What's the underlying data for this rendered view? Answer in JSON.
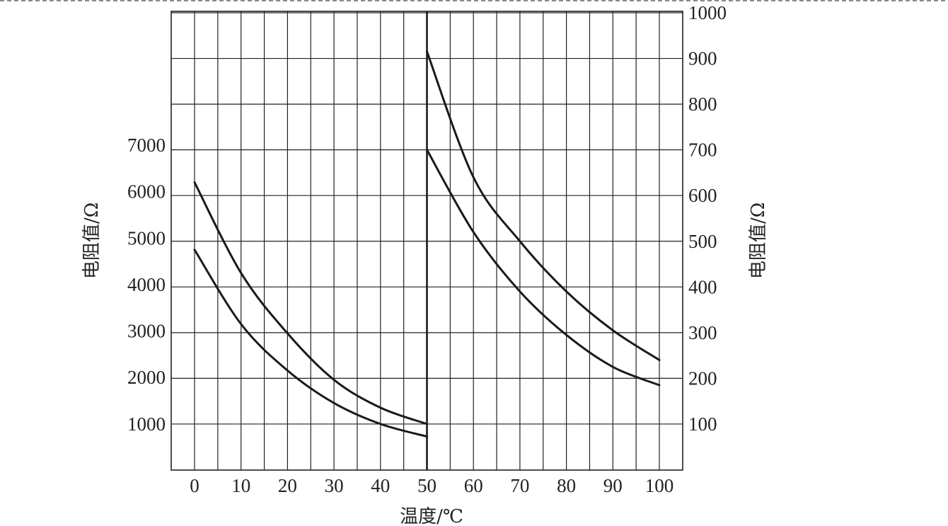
{
  "chart_data": {
    "type": "line",
    "x_axis": {
      "label": "温度/℃",
      "range": [
        0,
        100
      ],
      "ticks": [
        0,
        10,
        20,
        30,
        40,
        50,
        60,
        70,
        80,
        90,
        100
      ]
    },
    "left_axis": {
      "label": "电阻值/Ω",
      "ticks": [
        1000,
        2000,
        3000,
        4000,
        5000,
        6000,
        7000
      ],
      "range_top": 10000
    },
    "right_axis": {
      "label": "电阻值/Ω",
      "ticks": [
        100,
        200,
        300,
        400,
        500,
        600,
        700,
        800,
        900,
        1000
      ]
    },
    "grid": true,
    "series": [
      {
        "axis": "left",
        "x": [
          0,
          10,
          20,
          30,
          40,
          50
        ],
        "y": [
          6200,
          4250,
          2950,
          1950,
          1350,
          1000
        ]
      },
      {
        "axis": "left",
        "x": [
          0,
          10,
          20,
          30,
          40,
          50
        ],
        "y": [
          4750,
          3150,
          2150,
          1450,
          1000,
          730
        ]
      },
      {
        "axis": "right",
        "x": [
          50,
          60,
          70,
          80,
          90,
          100
        ],
        "y": [
          915,
          640,
          500,
          390,
          305,
          240
        ]
      },
      {
        "axis": "right",
        "x": [
          50,
          60,
          70,
          80,
          90,
          100
        ],
        "y": [
          700,
          520,
          390,
          295,
          225,
          185
        ]
      }
    ]
  }
}
